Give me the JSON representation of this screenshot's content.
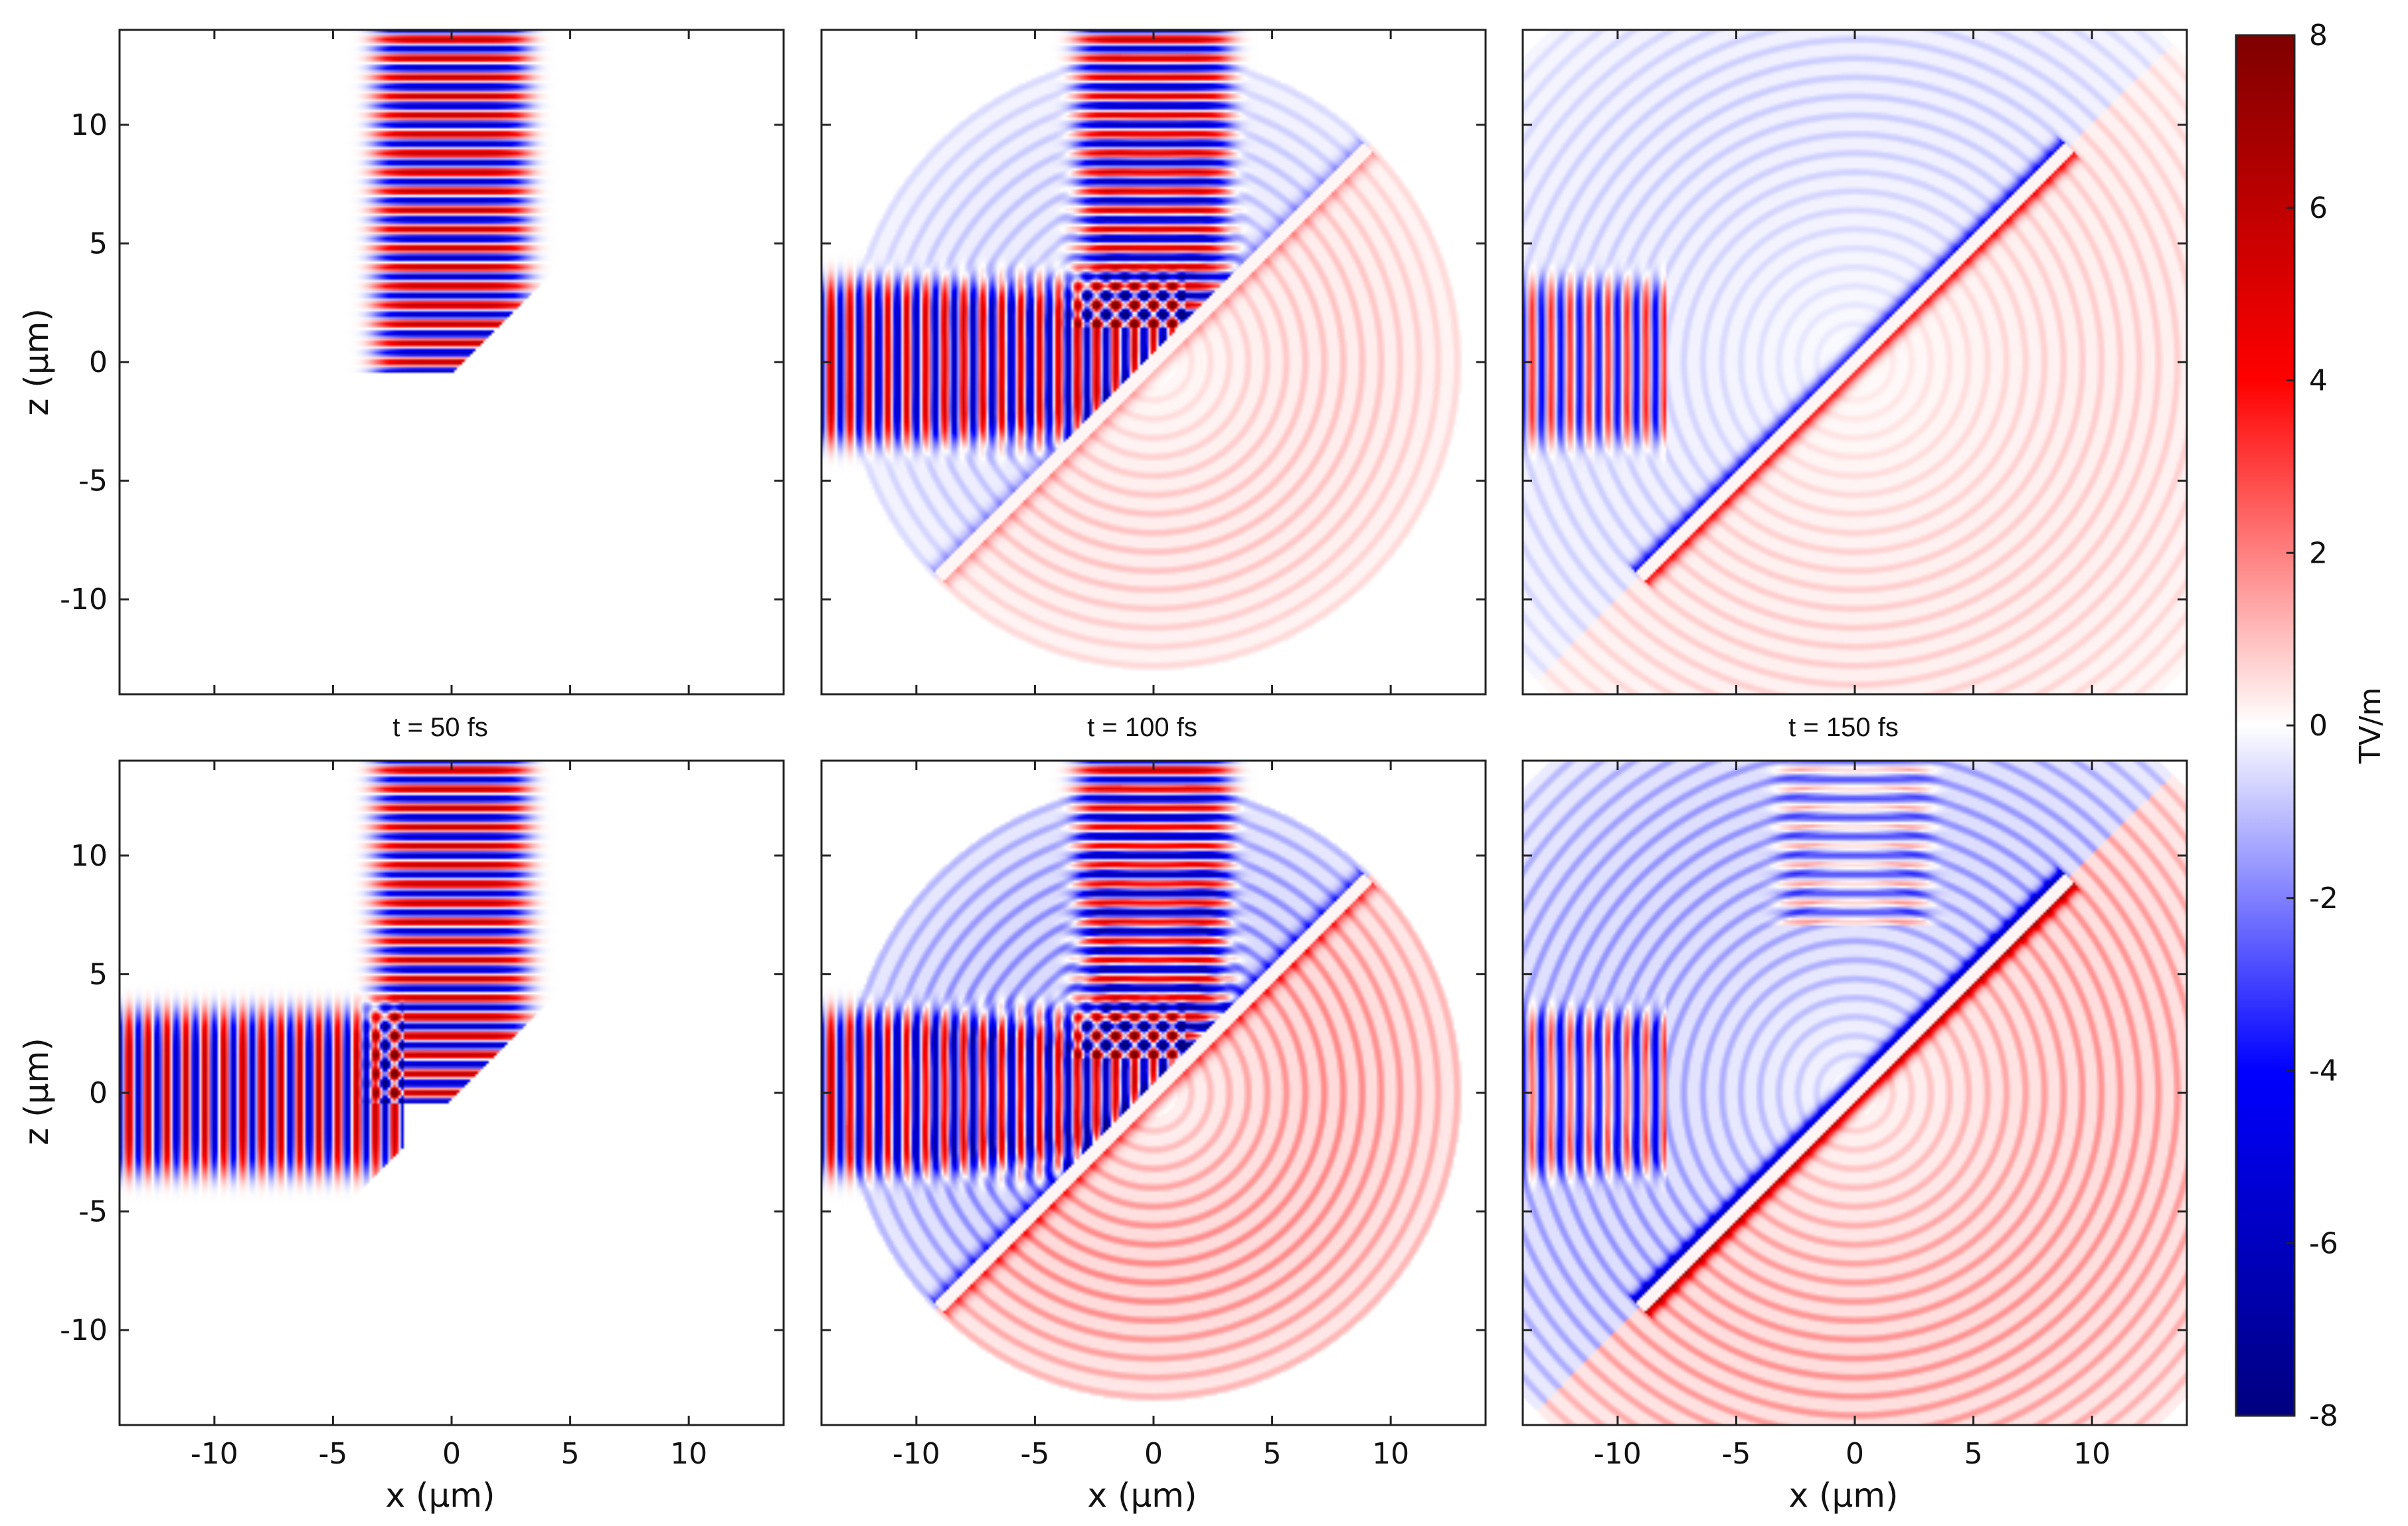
{
  "chart_data": {
    "type": "heatmap",
    "field": "Electric field snapshots (2D)",
    "x_axis": {
      "label": "x (μm)",
      "range": [
        -14,
        14
      ],
      "ticks": [
        -10,
        -5,
        0,
        5,
        10
      ]
    },
    "z_axis": {
      "label": "z (μm)",
      "range": [
        -14,
        14
      ],
      "ticks": [
        -10,
        -5,
        0,
        5,
        10
      ]
    },
    "colorbar": {
      "label": "TV/m",
      "range": [
        -8,
        8
      ],
      "ticks": [
        8,
        6,
        4,
        2,
        0,
        -2,
        -4,
        -6,
        -8
      ],
      "colormap": [
        "#00007f",
        "#0000ff",
        "#ffffff",
        "#ff0000",
        "#7f0000"
      ]
    },
    "column_titles": [
      "t = 50 fs",
      "t = 100 fs",
      "t = 150 fs"
    ],
    "target": {
      "type": "diagonal foil",
      "from": [
        -9,
        -9
      ],
      "to": [
        9,
        9
      ]
    },
    "panels": [
      {
        "row": 1,
        "col": 1,
        "time_fs": 50,
        "beams": [
          "vertical"
        ],
        "scatter": 0.0,
        "surface_charge": 0.0
      },
      {
        "row": 1,
        "col": 2,
        "time_fs": 100,
        "beams": [
          "horizontal",
          "vertical"
        ],
        "scatter": 0.3,
        "surface_charge": 0.2
      },
      {
        "row": 1,
        "col": 3,
        "time_fs": 150,
        "beams": [
          "horizontal"
        ],
        "scatter": 0.25,
        "surface_charge": 0.6
      },
      {
        "row": 2,
        "col": 1,
        "time_fs": 50,
        "beams": [
          "horizontal",
          "vertical"
        ],
        "scatter": 0.0,
        "surface_charge": 0.0
      },
      {
        "row": 2,
        "col": 2,
        "time_fs": 100,
        "beams": [
          "horizontal",
          "vertical"
        ],
        "scatter": 0.6,
        "surface_charge": 0.4
      },
      {
        "row": 2,
        "col": 3,
        "time_fs": 150,
        "beams": [
          "horizontal",
          "vertical"
        ],
        "scatter": 0.55,
        "surface_charge": 0.9
      }
    ]
  }
}
